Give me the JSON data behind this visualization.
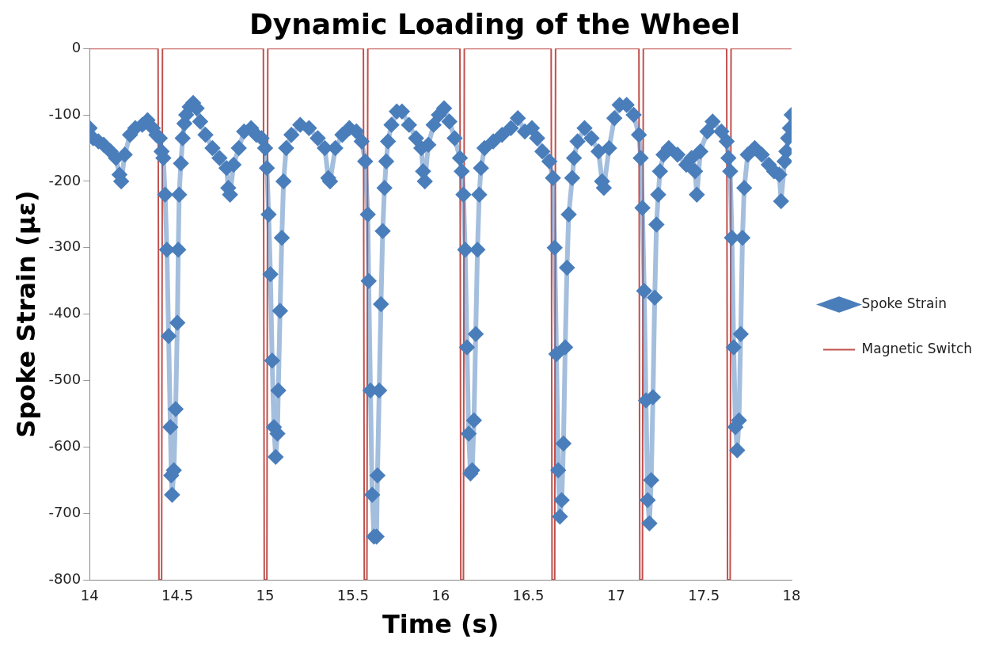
{
  "chart_data": {
    "type": "line",
    "title": "Dynamic Loading of the Wheel",
    "xlabel": "Time (s)",
    "ylabel": "Spoke Strain (με)",
    "xlim": [
      14,
      18
    ],
    "xticks": [
      14,
      14.5,
      15,
      15.5,
      16,
      16.5,
      17,
      17.5,
      18
    ],
    "ylim": [
      -800,
      0
    ],
    "yticks": [
      0,
      -100,
      -200,
      -300,
      -400,
      -500,
      -600,
      -700,
      -800
    ],
    "grid": false,
    "legend": "right",
    "line_style": "solid",
    "series": [
      {
        "name": "Spoke Strain",
        "color": "#4a7ebb",
        "marker": "diamond",
        "x": [
          14.0,
          14.02,
          14.05,
          14.08,
          14.12,
          14.15,
          14.17,
          14.18,
          14.2,
          14.23,
          14.26,
          14.3,
          14.33,
          14.36,
          14.38,
          14.4,
          14.41,
          14.42,
          14.43,
          14.44,
          14.45,
          14.46,
          14.465,
          14.47,
          14.48,
          14.49,
          14.5,
          14.505,
          14.51,
          14.52,
          14.53,
          14.54,
          14.55,
          14.57,
          14.59,
          14.61,
          14.63,
          14.66,
          14.7,
          14.74,
          14.78,
          14.79,
          14.8,
          14.82,
          14.85,
          14.88,
          14.92,
          14.95,
          14.98,
          15.0,
          15.01,
          15.02,
          15.03,
          15.04,
          15.05,
          15.06,
          15.07,
          15.075,
          15.085,
          15.095,
          15.105,
          15.12,
          15.15,
          15.2,
          15.25,
          15.3,
          15.34,
          15.36,
          15.37,
          15.4,
          15.44,
          15.48,
          15.52,
          15.55,
          15.57,
          15.585,
          15.59,
          15.6,
          15.61,
          15.62,
          15.635,
          15.64,
          15.65,
          15.66,
          15.67,
          15.68,
          15.69,
          15.7,
          15.72,
          15.75,
          15.78,
          15.82,
          15.86,
          15.89,
          15.9,
          15.91,
          15.93,
          15.96,
          15.99,
          16.02,
          16.05,
          16.08,
          16.11,
          16.12,
          16.13,
          16.14,
          16.15,
          16.16,
          16.17,
          16.18,
          16.19,
          16.2,
          16.21,
          16.22,
          16.23,
          16.25,
          16.3,
          16.35,
          16.4,
          16.44,
          16.48,
          16.52,
          16.55,
          16.58,
          16.62,
          16.64,
          16.65,
          16.66,
          16.67,
          16.68,
          16.69,
          16.7,
          16.71,
          16.72,
          16.73,
          16.75,
          16.76,
          16.78,
          16.82,
          16.86,
          16.9,
          16.92,
          16.93,
          16.96,
          16.99,
          17.02,
          17.06,
          17.1,
          17.13,
          17.14,
          17.15,
          17.16,
          17.17,
          17.18,
          17.19,
          17.2,
          17.21,
          17.22,
          17.23,
          17.24,
          17.25,
          17.27,
          17.3,
          17.35,
          17.4,
          17.43,
          17.45,
          17.46,
          17.48,
          17.52,
          17.55,
          17.6,
          17.63,
          17.64,
          17.65,
          17.66,
          17.67,
          17.68,
          17.69,
          17.7,
          17.71,
          17.72,
          17.73,
          17.75,
          17.79,
          17.83,
          17.87,
          17.9,
          17.93,
          17.94,
          17.96,
          17.97,
          17.98,
          17.99,
          18.0
        ],
        "values": [
          -120,
          -135,
          -140,
          -145,
          -155,
          -165,
          -190,
          -200,
          -160,
          -130,
          -120,
          -115,
          -108,
          -120,
          -130,
          -135,
          -155,
          -165,
          -220,
          -303,
          -433,
          -570,
          -643,
          -672,
          -635,
          -543,
          -413,
          -303,
          -220,
          -173,
          -135,
          -113,
          -100,
          -88,
          -82,
          -90,
          -110,
          -130,
          -150,
          -165,
          -180,
          -210,
          -220,
          -175,
          -150,
          -125,
          -120,
          -130,
          -135,
          -150,
          -180,
          -250,
          -340,
          -470,
          -570,
          -615,
          -580,
          -515,
          -395,
          -285,
          -200,
          -150,
          -130,
          -115,
          -120,
          -135,
          -150,
          -195,
          -200,
          -150,
          -130,
          -120,
          -125,
          -140,
          -170,
          -250,
          -350,
          -515,
          -672,
          -735,
          -735,
          -643,
          -515,
          -385,
          -275,
          -210,
          -170,
          -140,
          -115,
          -95,
          -95,
          -115,
          -135,
          -150,
          -185,
          -200,
          -145,
          -115,
          -100,
          -90,
          -110,
          -135,
          -165,
          -185,
          -220,
          -303,
          -450,
          -580,
          -640,
          -635,
          -560,
          -430,
          -303,
          -220,
          -180,
          -150,
          -140,
          -130,
          -120,
          -105,
          -125,
          -120,
          -135,
          -155,
          -170,
          -195,
          -300,
          -460,
          -635,
          -705,
          -680,
          -595,
          -450,
          -330,
          -250,
          -195,
          -165,
          -140,
          -120,
          -135,
          -155,
          -200,
          -210,
          -150,
          -105,
          -85,
          -85,
          -100,
          -130,
          -165,
          -240,
          -365,
          -530,
          -680,
          -715,
          -650,
          -525,
          -375,
          -265,
          -220,
          -185,
          -160,
          -150,
          -160,
          -175,
          -165,
          -185,
          -220,
          -155,
          -125,
          -110,
          -125,
          -140,
          -165,
          -185,
          -285,
          -450,
          -570,
          -605,
          -560,
          -430,
          -285,
          -210,
          -160,
          -150,
          -160,
          -175,
          -185,
          -190,
          -230,
          -170,
          -155,
          -135,
          -120,
          -100
        ]
      },
      {
        "name": "Magnetic Switch",
        "color": "#c0504d",
        "marker": "none",
        "x": [
          14.0,
          14.39,
          14.395,
          14.41,
          14.415,
          14.99,
          14.995,
          15.01,
          15.015,
          15.56,
          15.565,
          15.58,
          15.585,
          16.11,
          16.115,
          16.13,
          16.135,
          16.63,
          16.635,
          16.65,
          16.655,
          17.13,
          17.135,
          17.15,
          17.155,
          17.63,
          17.635,
          17.65,
          17.655,
          18.0
        ],
        "values": [
          0,
          0,
          -800,
          -800,
          0,
          0,
          -800,
          -800,
          0,
          0,
          -800,
          -800,
          0,
          0,
          -800,
          -800,
          0,
          0,
          -800,
          -800,
          0,
          0,
          -800,
          -800,
          0,
          0,
          -800,
          -800,
          0,
          0
        ]
      }
    ]
  }
}
